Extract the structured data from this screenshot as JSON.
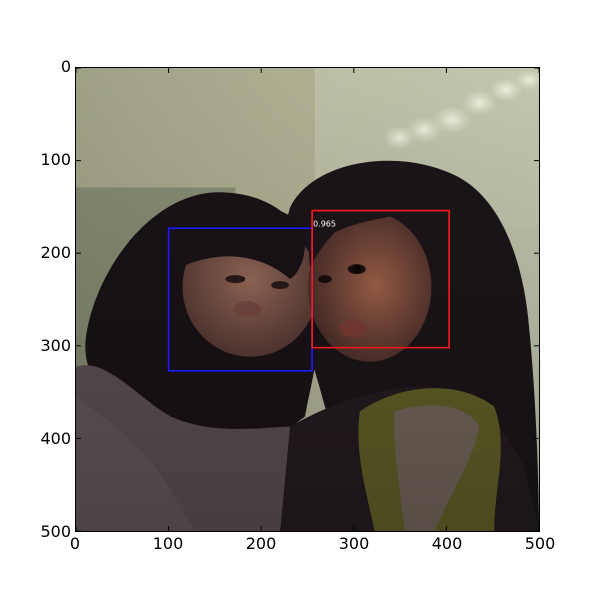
{
  "axes": {
    "x_ticks": [
      "0",
      "100",
      "200",
      "300",
      "400",
      "500"
    ],
    "y_ticks": [
      "0",
      "100",
      "200",
      "300",
      "400",
      "500"
    ],
    "x_range": [
      0,
      500
    ],
    "y_range": [
      0,
      500
    ],
    "y_inverted": true
  },
  "detections": [
    {
      "name": "face-box-left",
      "color": "#1a1aff",
      "x1": 100,
      "y1": 173,
      "x2": 255,
      "y2": 327,
      "score": ""
    },
    {
      "name": "face-box-right",
      "color": "#ff1a1a",
      "x1": 255,
      "y1": 154,
      "x2": 403,
      "y2": 302,
      "score": "0.965"
    }
  ],
  "image": {
    "subject": "two young women with dark hair pressed cheek to cheek making puffed-cheek faces",
    "colors": {
      "bg_top_left": "#a9a98a",
      "bg_top_right": "#c4c9b2",
      "bg_left": "#6f7864",
      "hair": "#1b1418",
      "skin": "#8a5a48",
      "sweater": "#5e5155",
      "scarf": "#6b6a2c"
    }
  }
}
